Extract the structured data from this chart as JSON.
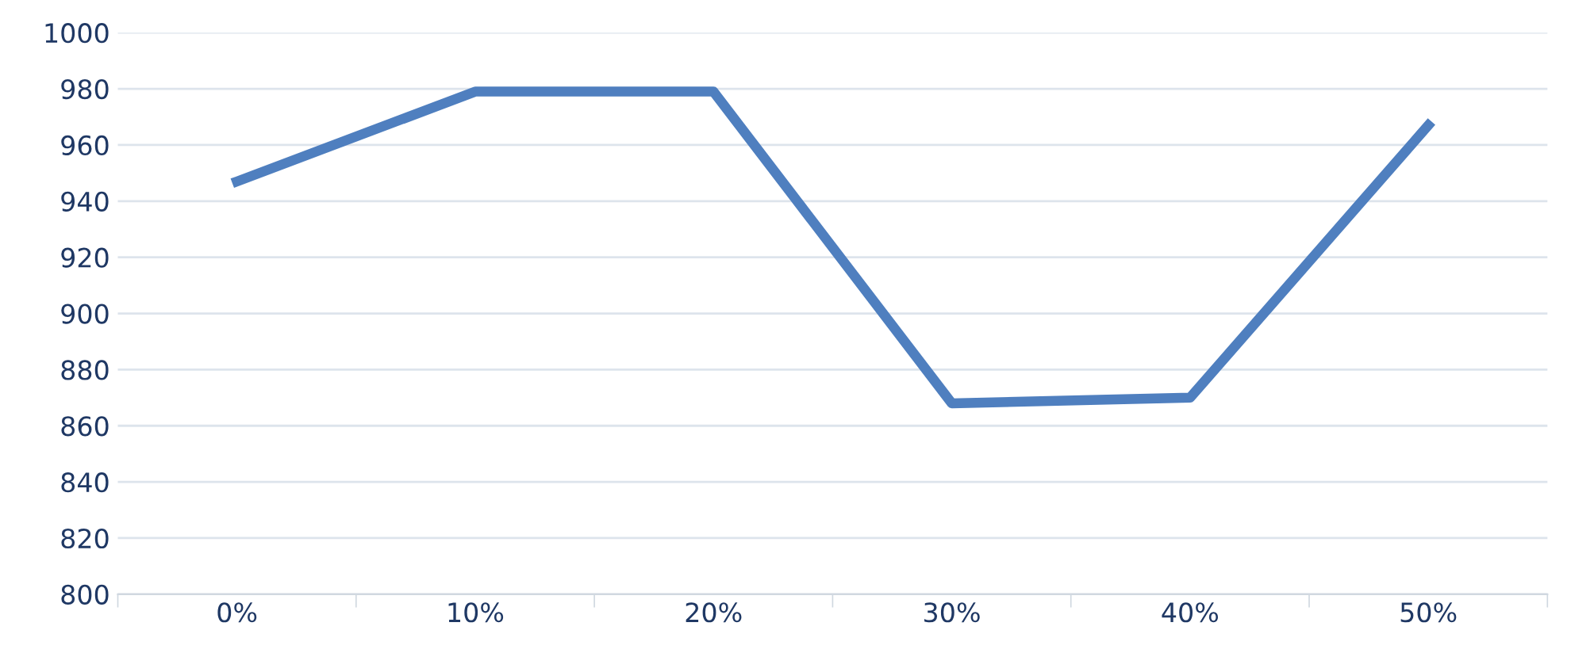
{
  "chart_data": {
    "type": "line",
    "categories": [
      "0%",
      "10%",
      "20%",
      "30%",
      "40%",
      "50%"
    ],
    "series": [
      {
        "color": "#4f7fbf",
        "values": [
          947,
          979,
          979,
          868,
          870,
          967
        ]
      }
    ],
    "ylim": [
      800,
      1000
    ],
    "yticks": [
      800,
      820,
      840,
      860,
      880,
      900,
      920,
      940,
      960,
      980,
      1000
    ],
    "grid": "y",
    "marker": "none",
    "line_style": "solid",
    "legend": false
  }
}
